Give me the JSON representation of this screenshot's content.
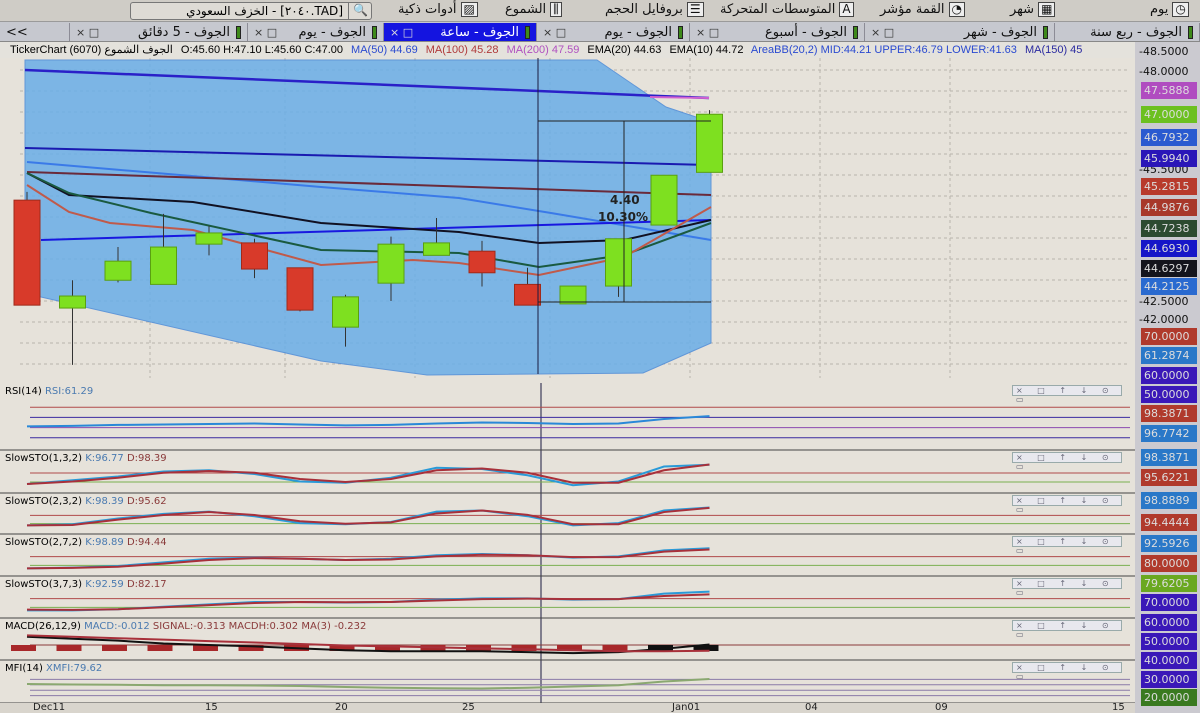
{
  "toolbar": {
    "items": [
      {
        "label": "يوم",
        "icon": "day-icon"
      },
      {
        "label": "شهر",
        "icon": "month-icon"
      },
      {
        "label": "القمة مؤشر",
        "icon": "indicator-icon"
      },
      {
        "label": "المتوسطات المتحركة",
        "icon": "moving-averages-icon"
      },
      {
        "label": "بروفايل الحجم",
        "icon": "volume-profile-icon"
      },
      {
        "label": "الشموع",
        "icon": "candles-icon"
      },
      {
        "label": "أدوات ذكية",
        "icon": "smart-tools-icon"
      }
    ],
    "search_value": "[TAD.٢٠٤٠] - الخزف السعودي"
  },
  "tabs": [
    {
      "label": "الجوف - ربع سنة",
      "active": false
    },
    {
      "label": "الجوف - شهر",
      "active": false
    },
    {
      "label": "الجوف - أسبوع",
      "active": false
    },
    {
      "label": "الجوف - يوم",
      "active": false
    },
    {
      "label": "الجوف - ساعة",
      "active": true
    },
    {
      "label": "الجوف - يوم",
      "active": false
    },
    {
      "label": "الجوف - 5 دقائق",
      "active": false
    }
  ],
  "tabs_overflow": "<<",
  "info": {
    "title": "TickerChart الجوف الشموع (6070)",
    "ohlc": "O:45.60  H:47.10  L:45.60  C:47.00",
    "ma50": "MA(50)  44.69",
    "ma100": "MA(100)  45.28",
    "ma200": "MA(200)  47.59",
    "ema20": "EMA(20)  44.63",
    "ema10": "EMA(10)  44.72",
    "bb": "AreaBB(20,2)  MID:44.21  UPPER:46.79  LOWER:41.63",
    "ma150": "MA(150)  45"
  },
  "panels": [
    {
      "title": "RSI(14)",
      "v1": "RSI:61.29",
      "v2": ""
    },
    {
      "title": "SlowSTO(1,3,2)",
      "v1": "K:96.77",
      "v2": "D:98.39"
    },
    {
      "title": "SlowSTO(2,3,2)",
      "v1": "K:98.39",
      "v2": "D:95.62"
    },
    {
      "title": "SlowSTO(2,7,2)",
      "v1": "K:98.89",
      "v2": "D:94.44"
    },
    {
      "title": "SlowSTO(3,7,3)",
      "v1": "K:92.59",
      "v2": "D:82.17"
    },
    {
      "title": "MACD(26,12,9)",
      "v1": "MACD:-0.012",
      "v2": "SIGNAL:-0.313  MACDH:0.302  MA(3)  -0.232"
    },
    {
      "title": "MFI(14)",
      "v1": "XMFI:79.62",
      "v2": ""
    }
  ],
  "panel_controls": "× □ ↑ ↓ ⊙ ▭",
  "measurement": {
    "change": "4.40",
    "percent": "10.30%"
  },
  "price_axis": {
    "ticks": [
      "48.5000",
      "48.0000",
      "45.5000",
      "42.5000",
      "42.0000"
    ],
    "badges": [
      {
        "text": "47.5888",
        "color": "#b04cc0"
      },
      {
        "text": "47.0000",
        "color": "#6cc020"
      },
      {
        "text": "46.7932",
        "color": "#2a5ad0"
      },
      {
        "text": "45.9940",
        "color": "#2a16b8"
      },
      {
        "text": "45.2815",
        "color": "#b83a2c"
      },
      {
        "text": "44.9876",
        "color": "#a8382a"
      },
      {
        "text": "44.7238",
        "color": "#2c4a30"
      },
      {
        "text": "44.6930",
        "color": "#1616c8"
      },
      {
        "text": "44.6297",
        "color": "#14141c"
      },
      {
        "text": "44.2125",
        "color": "#2a6ad0"
      },
      {
        "text": "70.0000",
        "color": "#b03a2c"
      },
      {
        "text": "61.2874",
        "color": "#2a78c8"
      },
      {
        "text": "60.0000",
        "color": "#3a18b8"
      },
      {
        "text": "50.0000",
        "color": "#3a18b8"
      },
      {
        "text": "98.3871",
        "color": "#b03a2c"
      },
      {
        "text": "96.7742",
        "color": "#2a78c8"
      },
      {
        "text": "98.3871",
        "color": "#2a78c8"
      },
      {
        "text": "95.6221",
        "color": "#b03a2c"
      },
      {
        "text": "98.8889",
        "color": "#2a78c8"
      },
      {
        "text": "94.4444",
        "color": "#b03a2c"
      },
      {
        "text": "92.5926",
        "color": "#2a78c8"
      },
      {
        "text": "80.0000",
        "color": "#b03a2c"
      },
      {
        "text": "79.6205",
        "color": "#6aa820"
      },
      {
        "text": "70.0000",
        "color": "#3a18b8"
      },
      {
        "text": "60.0000",
        "color": "#3a18b8"
      },
      {
        "text": "50.0000",
        "color": "#3a18b8"
      },
      {
        "text": "40.0000",
        "color": "#3a18b8"
      },
      {
        "text": "30.0000",
        "color": "#3a18b8"
      },
      {
        "text": "20.0000",
        "color": "#3a7a20"
      }
    ]
  },
  "date_axis": [
    "Dec11",
    "15",
    "20",
    "25",
    "Jan01",
    "04",
    "09",
    "15"
  ],
  "chart_data": {
    "type": "candlestick",
    "candles": [
      {
        "o": 44.93,
        "h": 45.13,
        "l": 42.4,
        "c": 42.4
      },
      {
        "o": 42.33,
        "h": 43.0,
        "l": 40.96,
        "c": 42.62
      },
      {
        "o": 43.0,
        "h": 43.8,
        "l": 42.95,
        "c": 43.46
      },
      {
        "o": 42.9,
        "h": 44.6,
        "l": 42.9,
        "c": 43.8
      },
      {
        "o": 43.87,
        "h": 44.3,
        "l": 43.6,
        "c": 44.14
      },
      {
        "o": 43.9,
        "h": 44.0,
        "l": 43.05,
        "c": 43.27
      },
      {
        "o": 43.3,
        "h": 43.3,
        "l": 42.25,
        "c": 42.28
      },
      {
        "o": 41.87,
        "h": 42.65,
        "l": 41.4,
        "c": 42.6
      },
      {
        "o": 42.93,
        "h": 44.05,
        "l": 42.5,
        "c": 43.87
      },
      {
        "o": 43.6,
        "h": 44.5,
        "l": 43.6,
        "c": 43.9
      },
      {
        "o": 43.7,
        "h": 43.95,
        "l": 42.85,
        "c": 43.18
      },
      {
        "o": 42.9,
        "h": 43.3,
        "l": 42.4,
        "c": 42.4
      },
      {
        "o": 42.43,
        "h": 42.86,
        "l": 42.43,
        "c": 42.86
      },
      {
        "o": 42.86,
        "h": 44.0,
        "l": 42.6,
        "c": 44.0
      },
      {
        "o": 44.33,
        "h": 45.53,
        "l": 44.33,
        "c": 45.53
      },
      {
        "o": 45.6,
        "h": 47.1,
        "l": 45.6,
        "c": 47.0
      }
    ],
    "ylim": [
      40.5,
      48.5
    ],
    "colors": {
      "up": "#7ee020",
      "down": "#d83a2a",
      "band": "#6aaee8"
    }
  }
}
